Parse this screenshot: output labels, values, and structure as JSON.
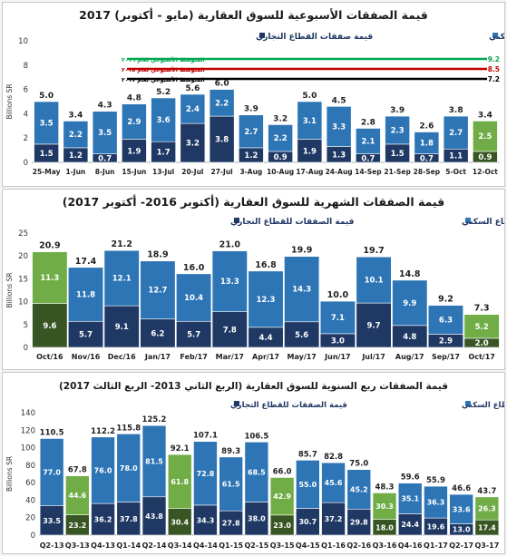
{
  "colors": {
    "residential": "#2e75b6",
    "residential_dark": "#1f4e79",
    "commercial": "#1f3864",
    "highlight_res": "#70ad47",
    "highlight_com": "#375623",
    "ref_2016": "#00a651",
    "ref_2015": "#c00000",
    "ref_2017": "#000000"
  },
  "chart_data": [
    {
      "type": "bar",
      "stacked": true,
      "title": "قيمة الصفقات الأسبوعية للسوق العقارية (مايو - أكتوبر) 2017",
      "ylabel": "Billions SR",
      "ylim": [
        0,
        10
      ],
      "yticks": [
        0,
        2,
        4,
        6,
        8,
        10
      ],
      "legend": {
        "residential": "قيمة صفقات القطاع السكني",
        "commercial": "قيمة صفقات القطاع التجاري"
      },
      "reference_lines": [
        {
          "label": "المتوسط الأسبوعي لعام ٢٠١٦",
          "value": 9.2,
          "value_label": "9.2",
          "color": "ref_2016"
        },
        {
          "label": "المتوسط الأسبوعي لعام ٢٠١٥",
          "value": 8.5,
          "value_label": "8.5",
          "color": "ref_2015"
        },
        {
          "label": "المتوسط الأسبوعي لعام ٢٠١٧",
          "value": 7.2,
          "value_label": "7.2",
          "color": "ref_2017"
        }
      ],
      "categories": [
        "25-May",
        "1-Jun",
        "8-Jun",
        "15-Jun",
        "13-Jul",
        "20-Jul",
        "27-Jul",
        "3-Aug",
        "10-Aug",
        "17-Aug",
        "24-Aug",
        "14-Sep",
        "21-Sep",
        "28-Sep",
        "5-Oct",
        "12-Oct"
      ],
      "commercial": [
        1.5,
        1.2,
        0.7,
        1.9,
        1.7,
        3.2,
        3.8,
        1.2,
        0.9,
        1.9,
        1.3,
        0.7,
        1.5,
        0.7,
        1.1,
        0.9
      ],
      "residential": [
        3.5,
        2.2,
        3.5,
        2.9,
        3.6,
        2.4,
        2.2,
        2.7,
        2.2,
        3.1,
        3.3,
        2.1,
        2.3,
        1.8,
        2.7,
        2.5
      ],
      "totals": [
        5.0,
        3.4,
        4.3,
        4.8,
        5.2,
        5.6,
        6.0,
        3.9,
        3.2,
        5.0,
        4.5,
        2.8,
        3.9,
        2.6,
        3.8,
        3.4
      ],
      "highlight": [
        15
      ]
    },
    {
      "type": "bar",
      "stacked": true,
      "title": "قيمة الصفقات الشهرية للسوق العقارية (أكتوبر 2016- أكتوبر 2017)",
      "ylabel": "Billions SR",
      "ylim": [
        0,
        25
      ],
      "yticks": [
        0,
        5,
        10,
        15,
        20,
        25
      ],
      "legend": {
        "residential": "قيمة الصفقات للقطاع السكني",
        "commercial": "قيمة الصفقات للقطاع التجاري"
      },
      "categories": [
        "Oct/16",
        "Nov/16",
        "Dec/16",
        "Jan/17",
        "Feb/17",
        "Mar/17",
        "Apr/17",
        "May/17",
        "Jun/17",
        "Jul/17",
        "Aug/17",
        "Sep/17",
        "Oct/17"
      ],
      "commercial": [
        9.6,
        5.7,
        9.1,
        6.2,
        5.7,
        7.8,
        4.4,
        5.6,
        3.0,
        9.7,
        4.8,
        2.9,
        2.0
      ],
      "residential": [
        11.3,
        11.8,
        12.1,
        12.7,
        10.4,
        13.3,
        12.3,
        14.3,
        7.1,
        10.1,
        9.9,
        6.3,
        5.2
      ],
      "totals": [
        20.9,
        17.4,
        21.2,
        18.9,
        16.0,
        21.0,
        16.8,
        19.9,
        10.0,
        19.7,
        14.8,
        9.2,
        7.3
      ],
      "highlight": [
        0,
        12
      ]
    },
    {
      "type": "bar",
      "stacked": true,
      "title": "قيمة الصفقات ربع السنوية للسوق العقارية (الربع الثاني 2013- الربع الثالث 2017)",
      "ylabel": "Billions SR",
      "ylim": [
        0,
        140
      ],
      "yticks": [
        0,
        20,
        40,
        60,
        80,
        100,
        120,
        140
      ],
      "legend": {
        "residential": "قيمة الصفقات للقطاع السكني",
        "commercial": "قيمة الصفقات للقطاع التجاري"
      },
      "categories": [
        "Q2-13",
        "Q3-13",
        "Q4-13",
        "Q1-14",
        "Q2-14",
        "Q3-14",
        "Q4-14",
        "Q1-15",
        "Q2-15",
        "Q3-15",
        "Q4-15",
        "Q1-16",
        "Q2-16",
        "Q3-16",
        "Q4-16",
        "Q1-17",
        "Q2-17",
        "Q3-17"
      ],
      "commercial": [
        33.5,
        23.2,
        36.2,
        37.8,
        43.8,
        30.4,
        34.3,
        27.8,
        38.0,
        23.0,
        30.7,
        37.2,
        29.8,
        18.0,
        24.4,
        19.6,
        13.0,
        17.4
      ],
      "residential": [
        77.0,
        44.6,
        76.0,
        78.0,
        81.5,
        61.8,
        72.8,
        61.5,
        68.5,
        42.9,
        55.0,
        45.6,
        45.2,
        30.3,
        35.1,
        36.3,
        33.6,
        26.3
      ],
      "totals": [
        110.5,
        67.8,
        112.2,
        115.8,
        125.2,
        92.1,
        107.1,
        89.3,
        106.5,
        66.0,
        85.7,
        82.8,
        75.0,
        48.3,
        59.6,
        55.9,
        46.6,
        43.7
      ],
      "highlight": [
        1,
        5,
        9,
        13,
        17
      ]
    }
  ]
}
